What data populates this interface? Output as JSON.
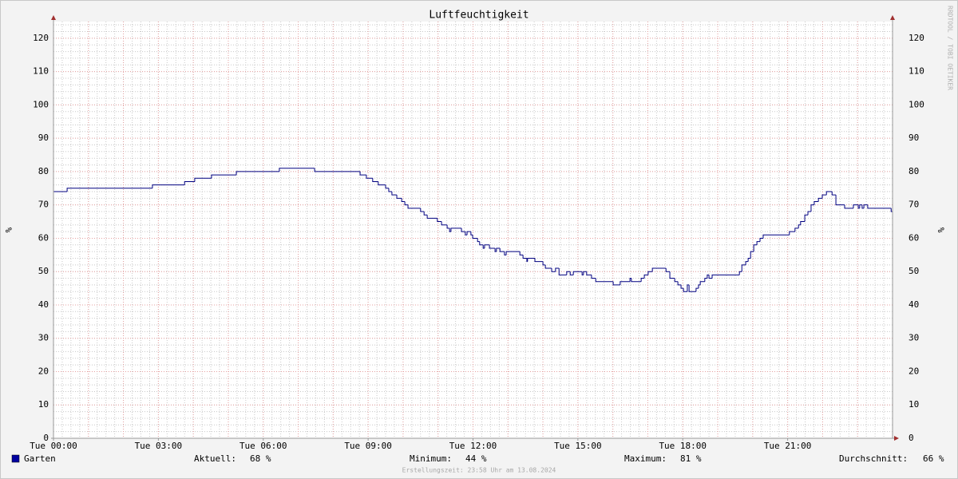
{
  "chart_data": {
    "type": "step",
    "title": "Luftfeuchtigkeit",
    "y_label": "%",
    "watermark": "RRDTOOL / TOBI OETIKER",
    "footer": "Erstellungszeit: 23:58 Uhr am 13.08.2024",
    "xlim": [
      0,
      24
    ],
    "xticks": [
      {
        "value": 0,
        "label": "Tue 00:00"
      },
      {
        "value": 3,
        "label": "Tue 03:00"
      },
      {
        "value": 6,
        "label": "Tue 06:00"
      },
      {
        "value": 9,
        "label": "Tue 09:00"
      },
      {
        "value": 12,
        "label": "Tue 12:00"
      },
      {
        "value": 15,
        "label": "Tue 15:00"
      },
      {
        "value": 18,
        "label": "Tue 18:00"
      },
      {
        "value": 21,
        "label": "Tue 21:00"
      }
    ],
    "ylim": [
      0,
      125
    ],
    "yticks": [
      0,
      10,
      20,
      30,
      40,
      50,
      60,
      70,
      80,
      90,
      100,
      110,
      120
    ],
    "grid": true,
    "series": [
      {
        "name": "Garten",
        "color": "#000080",
        "legend_color": "#0000a0",
        "x": [
          0,
          0.39,
          2.83,
          3.75,
          4.04,
          4.52,
          5.23,
          6.46,
          7.47,
          8.77,
          8.95,
          9.13,
          9.29,
          9.5,
          9.59,
          9.68,
          9.82,
          9.96,
          10.05,
          10.14,
          10.5,
          10.6,
          10.69,
          10.98,
          11.1,
          11.26,
          11.33,
          11.37,
          11.67,
          11.78,
          11.83,
          11.94,
          11.99,
          12.13,
          12.19,
          12.29,
          12.33,
          12.47,
          12.63,
          12.67,
          12.77,
          12.9,
          12.95,
          13.34,
          13.43,
          13.54,
          13.56,
          13.77,
          14.0,
          14.07,
          14.25,
          14.36,
          14.46,
          14.68,
          14.78,
          14.87,
          15.12,
          15.16,
          15.25,
          15.39,
          15.51,
          16.01,
          16.21,
          16.49,
          16.53,
          16.81,
          16.9,
          17.01,
          17.13,
          17.52,
          17.63,
          17.77,
          17.86,
          17.95,
          18.02,
          18.13,
          18.18,
          18.38,
          18.45,
          18.5,
          18.63,
          18.7,
          18.75,
          18.84,
          19.62,
          19.69,
          19.8,
          19.87,
          19.94,
          20.03,
          20.12,
          20.21,
          20.3,
          21.05,
          21.21,
          21.31,
          21.37,
          21.49,
          21.58,
          21.67,
          21.76,
          21.88,
          21.99,
          22.11,
          22.27,
          22.38,
          22.63,
          22.88,
          23.02,
          23.06,
          23.13,
          23.18,
          23.29,
          23.96
        ],
        "values": [
          74,
          75,
          76,
          77,
          78,
          79,
          80,
          81,
          80,
          79,
          78,
          77,
          76,
          75,
          74,
          73,
          72,
          71,
          70,
          69,
          68,
          67,
          66,
          65,
          64,
          63,
          62,
          63,
          62,
          61,
          62,
          61,
          60,
          59,
          58,
          57,
          58,
          57,
          56,
          57,
          56,
          55,
          56,
          55,
          54,
          53,
          54,
          53,
          52,
          51,
          50,
          51,
          49,
          50,
          49,
          50,
          49,
          50,
          49,
          48,
          47,
          46,
          47,
          48,
          47,
          48,
          49,
          50,
          51,
          50,
          48,
          47,
          46,
          45,
          44,
          46,
          44,
          45,
          46,
          47,
          48,
          49,
          48,
          49,
          50,
          52,
          53,
          54,
          56,
          58,
          59,
          60,
          61,
          62,
          63,
          64,
          65,
          67,
          68,
          70,
          71,
          72,
          73,
          74,
          73,
          70,
          69,
          70,
          69,
          70,
          69,
          70,
          69,
          68
        ]
      }
    ],
    "stats": [
      {
        "label": "Aktuell:",
        "text": "68 %"
      },
      {
        "label": "Minimum:",
        "text": "44 %"
      },
      {
        "label": "Maximum:",
        "text": "81 %"
      },
      {
        "label": "Durchschnitt:",
        "text": "66 %"
      }
    ]
  }
}
